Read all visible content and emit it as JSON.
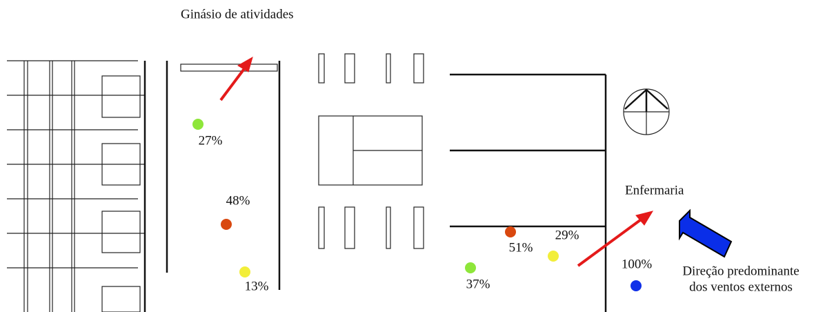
{
  "labels": {
    "gym": "Ginásio de atividades",
    "infirmary": "Enfermaria",
    "wind": [
      "Direção predominante",
      "dos ventos externos"
    ]
  },
  "points": [
    {
      "label": "27%",
      "color": "#8ee63a"
    },
    {
      "label": "48%",
      "color": "#d9480f"
    },
    {
      "label": "13%",
      "color": "#f2ee3a"
    },
    {
      "label": "51%",
      "color": "#d9480f"
    },
    {
      "label": "29%",
      "color": "#f2ee3a"
    },
    {
      "label": "37%",
      "color": "#8ee63a"
    },
    {
      "label": "100%",
      "color": "#1030e8"
    }
  ]
}
